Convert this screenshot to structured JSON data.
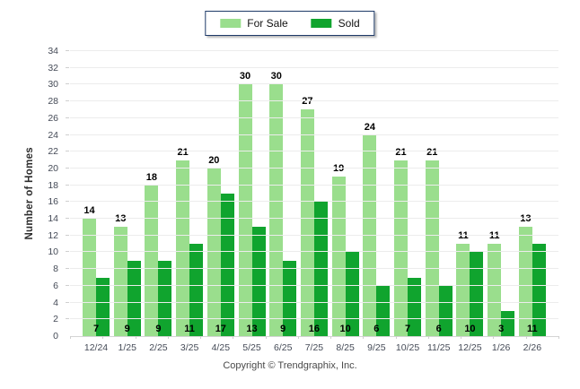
{
  "legend": {
    "for_sale_label": "For Sale",
    "sold_label": "Sold"
  },
  "footer": {
    "copyright": "Copyright © Trendgraphix, Inc."
  },
  "colors": {
    "for_sale": "#9ADE8D",
    "sold": "#10A42E",
    "legend_border": "#1E3A68",
    "gridline": "#ECECEC",
    "tick_text": "#454B57"
  },
  "chart_data": {
    "type": "bar",
    "title": "",
    "xlabel": "",
    "ylabel": "Number of Homes",
    "ylim": [
      0,
      34
    ],
    "ytick_step": 2,
    "grid": true,
    "legend_position": "top-center",
    "categories": [
      "12/24",
      "1/25",
      "2/25",
      "3/25",
      "4/25",
      "5/25",
      "6/25",
      "7/25",
      "8/25",
      "9/25",
      "10/25",
      "11/25",
      "12/25",
      "1/26",
      "2/26"
    ],
    "series": [
      {
        "name": "For Sale",
        "color": "#9ADE8D",
        "values": [
          14,
          13,
          18,
          21,
          20,
          30,
          30,
          27,
          19,
          24,
          21,
          21,
          11,
          11,
          13
        ]
      },
      {
        "name": "Sold",
        "color": "#10A42E",
        "values": [
          7,
          9,
          9,
          11,
          17,
          13,
          9,
          16,
          10,
          6,
          7,
          6,
          10,
          3,
          11
        ]
      }
    ]
  }
}
